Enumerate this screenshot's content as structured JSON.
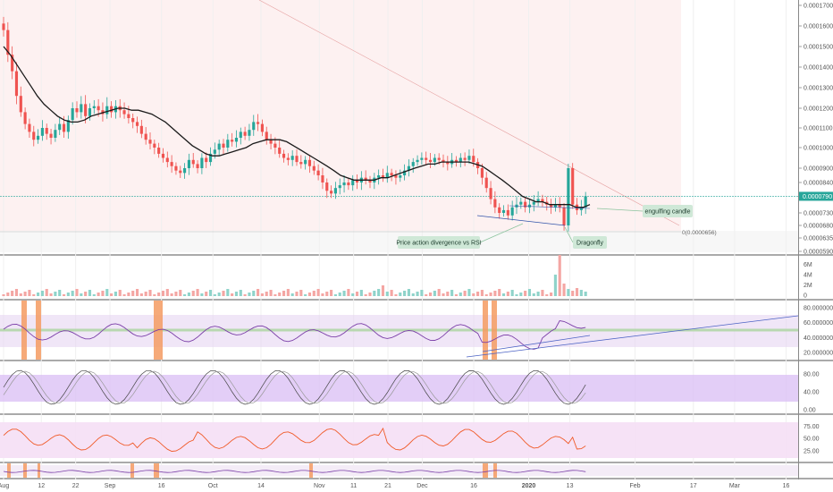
{
  "chart_data": {
    "type": "candlestick",
    "symbol_timeframe": "daily",
    "price_axis": {
      "ticks": [
        "0.0001700",
        "0.0001600",
        "0.0001500",
        "0.0001400",
        "0.0001300",
        "0.0001200",
        "0.0001100",
        "0.0001000",
        "0.0000900",
        "0.0000840",
        "0.0000730",
        "0.0000680",
        "0.0000635",
        "0.0000590"
      ],
      "tick_values": [
        0.00017,
        0.00016,
        0.00015,
        0.00014,
        0.00013,
        0.00012,
        0.00011,
        0.0001,
        9e-05,
        8.4e-05,
        7.3e-05,
        6.8e-05,
        6.35e-05,
        5.9e-05
      ],
      "range": [
        5.75e-05,
        0.0001725
      ],
      "current_price_label": "0.0000790",
      "current_price": 7.9e-05
    },
    "date_axis": {
      "labels": [
        "Aug",
        "12",
        "22",
        "Sep",
        "16",
        "Oct",
        "14",
        "Nov",
        "11",
        "21",
        "Dec",
        "16",
        "2020",
        "13",
        "Feb",
        "17",
        "Mar",
        "16"
      ],
      "label_day_index": [
        0,
        11,
        21,
        31,
        46,
        61,
        75,
        92,
        102,
        112,
        122,
        137,
        153,
        165,
        184,
        201,
        213,
        228
      ],
      "total_days": 231
    },
    "candles_close": [
      0.000158,
      0.000146,
      0.000138,
      0.000126,
      0.000118,
      0.000112,
      0.000108,
      0.000104,
      0.000106,
      0.00011,
      0.000107,
      0.000105,
      0.000109,
      0.000112,
      0.000108,
      0.000114,
      0.00012,
      0.000118,
      0.000122,
      0.000116,
      0.00012,
      0.000121,
      0.000119,
      0.000117,
      0.000121,
      0.000118,
      0.000121,
      0.000119,
      0.000117,
      0.000115,
      0.000113,
      0.000111,
      0.000107,
      0.000104,
      0.000102,
      0.0001,
      9.7e-05,
      9.5e-05,
      9.3e-05,
      9.1e-05,
      8.9e-05,
      8.8e-05,
      9e-05,
      9.4e-05,
      9.2e-05,
      9e-05,
      9.5e-05,
      9.3e-05,
      9.7e-05,
      9.9e-05,
      0.000102,
      0.0001,
      0.000104,
      0.000103,
      0.000105,
      0.000108,
      0.000106,
      0.000109,
      0.000113,
      0.000112,
      0.000108,
      0.000104,
      0.000102,
      0.0001,
      9.7e-05,
      9.5e-05,
      9.4e-05,
      9.6e-05,
      9.3e-05,
      9.2e-05,
      9.4e-05,
      9.1e-05,
      8.9e-05,
      8.7e-05,
      8.4e-05,
      8.1e-05,
      8e-05,
      8.2e-05,
      8.3e-05,
      8.4e-05,
      8.3e-05,
      8.5e-05,
      8.4e-05,
      8.6e-05,
      8.5e-05,
      8.4e-05,
      8.6e-05,
      8.7e-05,
      8.6e-05,
      8.8e-05,
      8.7e-05,
      8.6e-05,
      8.7e-05,
      8.9e-05,
      9.1e-05,
      9.3e-05,
      9.4e-05,
      9.5e-05,
      9.4e-05,
      9.3e-05,
      9.5e-05,
      9.4e-05,
      9.3e-05,
      9.2e-05,
      9.4e-05,
      9.3e-05,
      9.5e-05,
      9.4e-05,
      9.6e-05,
      9.3e-05,
      9e-05,
      8.6e-05,
      8.2e-05,
      7.8e-05,
      7.5e-05,
      7.3e-05,
      7.4e-05,
      7.2e-05,
      7.5e-05,
      7.6e-05,
      7.7e-05,
      7.5e-05,
      7.6e-05,
      7.7e-05,
      7.8e-05,
      7.7e-05,
      7.6e-05,
      7.5e-05,
      7.6e-05,
      7.5e-05,
      6.8e-05,
      9e-05,
      7.6e-05,
      7.4e-05,
      7.5e-05,
      7.9e-05
    ],
    "ma_values": [
      0.00015,
      0.000146,
      0.000141,
      0.000136,
      0.000131,
      0.000126,
      0.000122,
      0.000119,
      0.000116,
      0.000114,
      0.000113,
      0.000113,
      0.000114,
      0.000116,
      0.000117,
      0.000118,
      0.000119,
      0.00012,
      0.00012,
      0.000119,
      0.000119,
      0.000118,
      0.000117,
      0.000115,
      0.000113,
      0.00011,
      0.000107,
      0.000104,
      0.000101,
      9.9e-05,
      9.7e-05,
      9.6e-05,
      9.6e-05,
      9.7e-05,
      9.8e-05,
      9.9e-05,
      0.0001,
      0.000102,
      0.000103,
      0.000104,
      0.000104,
      0.000104,
      0.000103,
      0.000101,
      9.9e-05,
      9.7e-05,
      9.5e-05,
      9.3e-05,
      9.1e-05,
      8.9e-05,
      8.7e-05,
      8.6e-05,
      8.5e-05,
      8.5e-05,
      8.5e-05,
      8.5e-05,
      8.6e-05,
      8.6e-05,
      8.7e-05,
      8.8e-05,
      8.9e-05,
      9e-05,
      9.1e-05,
      9.2e-05,
      9.2e-05,
      9.3e-05,
      9.3e-05,
      9.3e-05,
      9.3e-05,
      9.3e-05,
      9.2e-05,
      9.1e-05,
      8.9e-05,
      8.7e-05,
      8.5e-05,
      8.3e-05,
      8.1e-05,
      7.9e-05,
      7.8e-05,
      7.7e-05,
      7.7e-05,
      7.6e-05,
      7.6e-05,
      7.6e-05,
      7.6e-05,
      7.5e-05,
      7.5e-05,
      7.6e-05
    ],
    "volume_axis": {
      "ticks": [
        "6M",
        "4M",
        "2M",
        "0"
      ],
      "tick_values": [
        6,
        4,
        2,
        0
      ]
    },
    "rsi_axis": {
      "ticks": [
        "80.0000000",
        "60.0000000",
        "40.0000000",
        "20.0000000"
      ],
      "tick_values": [
        80,
        60,
        40,
        20
      ]
    },
    "stoch_axis": {
      "ticks": [
        "80.00",
        "40.00",
        "0.00"
      ],
      "tick_values": [
        80,
        40,
        0
      ]
    },
    "mfi_axis": {
      "ticks": [
        "75.00",
        "50.00",
        "25.00"
      ],
      "tick_values": [
        75,
        50,
        25
      ]
    },
    "fib_label": "0(0.0000656)",
    "annotations": [
      {
        "text": "engulfing candle"
      },
      {
        "text": "Price action divergence vs RSI"
      },
      {
        "text": "Dragonfly"
      }
    ],
    "colors": {
      "up": "#26a69a",
      "down": "#ef5350",
      "ma": "#1a1a1a",
      "rsi_line": "#7b3fa8",
      "rsi_band": "#e6d6f2",
      "stoch_band": "#dcc2f5",
      "mfi_line": "#f05a28",
      "mfi_band": "#f5dff5",
      "highlight": "#f59b62",
      "callout_fill": "#cfe8d7",
      "current_price": "#26a69a"
    }
  }
}
